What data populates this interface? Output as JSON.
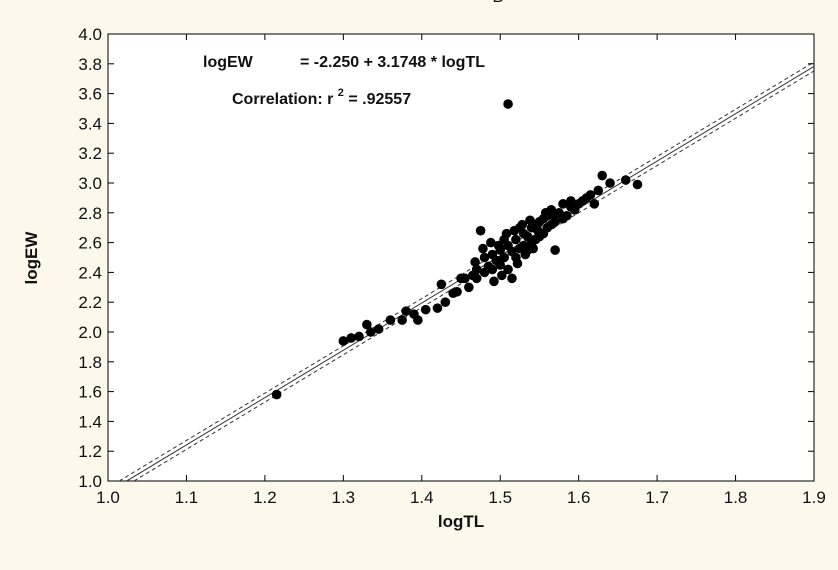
{
  "chart_data": {
    "type": "scatter",
    "top_label_partial": "B",
    "xlabel": "logTL",
    "ylabel": "logEW",
    "xlim": [
      1.0,
      1.9
    ],
    "ylim": [
      1.0,
      4.0
    ],
    "xticks": [
      1.0,
      1.1,
      1.2,
      1.3,
      1.4,
      1.5,
      1.6,
      1.7,
      1.8,
      1.9
    ],
    "xtick_labels": [
      "1.0",
      "1.1",
      "1.2",
      "1.3",
      "1.4",
      "1.5",
      "1.6",
      "1.7",
      "1.8",
      "1.9"
    ],
    "yticks": [
      1.0,
      1.2,
      1.4,
      1.6,
      1.8,
      2.0,
      2.2,
      2.4,
      2.6,
      2.8,
      3.0,
      3.2,
      3.4,
      3.6,
      3.8,
      4.0
    ],
    "ytick_labels": [
      "1.0",
      "1.2",
      "1.4",
      "1.6",
      "1.8",
      "2.0",
      "2.2",
      "2.4",
      "2.6",
      "2.8",
      "3.0",
      "3.2",
      "3.4",
      "3.6",
      "3.8",
      "4.0"
    ],
    "equation_label": "logEW",
    "equation_rhs": "= -2.250 + 3.1748 * logTL",
    "correlation_text": "Correlation: r",
    "correlation_exponent": "2",
    "correlation_value": " = .92557",
    "regression": {
      "intercept": -2.25,
      "slope": 3.1748
    },
    "confidence_band_offset": 0.03,
    "grid": false,
    "points": [
      [
        1.215,
        1.58
      ],
      [
        1.3,
        1.94
      ],
      [
        1.31,
        1.96
      ],
      [
        1.32,
        1.97
      ],
      [
        1.33,
        2.05
      ],
      [
        1.335,
        2.0
      ],
      [
        1.345,
        2.02
      ],
      [
        1.36,
        2.08
      ],
      [
        1.375,
        2.08
      ],
      [
        1.38,
        2.14
      ],
      [
        1.39,
        2.12
      ],
      [
        1.395,
        2.08
      ],
      [
        1.405,
        2.15
      ],
      [
        1.42,
        2.16
      ],
      [
        1.425,
        2.32
      ],
      [
        1.43,
        2.2
      ],
      [
        1.44,
        2.26
      ],
      [
        1.445,
        2.27
      ],
      [
        1.45,
        2.36
      ],
      [
        1.455,
        2.36
      ],
      [
        1.46,
        2.3
      ],
      [
        1.465,
        2.38
      ],
      [
        1.47,
        2.42
      ],
      [
        1.47,
        2.36
      ],
      [
        1.475,
        2.68
      ],
      [
        1.48,
        2.4
      ],
      [
        1.48,
        2.5
      ],
      [
        1.485,
        2.44
      ],
      [
        1.49,
        2.42
      ],
      [
        1.49,
        2.52
      ],
      [
        1.495,
        2.48
      ],
      [
        1.5,
        2.45
      ],
      [
        1.5,
        2.55
      ],
      [
        1.505,
        2.5
      ],
      [
        1.505,
        2.62
      ],
      [
        1.51,
        2.42
      ],
      [
        1.51,
        2.58
      ],
      [
        1.515,
        2.36
      ],
      [
        1.515,
        2.54
      ],
      [
        1.52,
        2.5
      ],
      [
        1.52,
        2.62
      ],
      [
        1.525,
        2.56
      ],
      [
        1.525,
        2.7
      ],
      [
        1.53,
        2.58
      ],
      [
        1.53,
        2.66
      ],
      [
        1.535,
        2.55
      ],
      [
        1.535,
        2.64
      ],
      [
        1.54,
        2.6
      ],
      [
        1.54,
        2.7
      ],
      [
        1.545,
        2.62
      ],
      [
        1.545,
        2.72
      ],
      [
        1.55,
        2.64
      ],
      [
        1.55,
        2.74
      ],
      [
        1.555,
        2.66
      ],
      [
        1.555,
        2.76
      ],
      [
        1.56,
        2.7
      ],
      [
        1.56,
        2.78
      ],
      [
        1.565,
        2.72
      ],
      [
        1.565,
        2.82
      ],
      [
        1.57,
        2.55
      ],
      [
        1.57,
        2.74
      ],
      [
        1.575,
        2.8
      ],
      [
        1.58,
        2.76
      ],
      [
        1.58,
        2.86
      ],
      [
        1.585,
        2.78
      ],
      [
        1.59,
        2.84
      ],
      [
        1.59,
        2.88
      ],
      [
        1.595,
        2.82
      ],
      [
        1.6,
        2.86
      ],
      [
        1.605,
        2.88
      ],
      [
        1.61,
        2.9
      ],
      [
        1.615,
        2.92
      ],
      [
        1.62,
        2.86
      ],
      [
        1.625,
        2.95
      ],
      [
        1.63,
        3.05
      ],
      [
        1.64,
        3.0
      ],
      [
        1.66,
        3.02
      ],
      [
        1.675,
        2.99
      ],
      [
        1.51,
        3.53
      ],
      [
        1.468,
        2.47
      ],
      [
        1.478,
        2.56
      ],
      [
        1.488,
        2.6
      ],
      [
        1.498,
        2.58
      ],
      [
        1.508,
        2.66
      ],
      [
        1.518,
        2.68
      ],
      [
        1.528,
        2.72
      ],
      [
        1.538,
        2.75
      ],
      [
        1.548,
        2.68
      ],
      [
        1.558,
        2.8
      ],
      [
        1.568,
        2.78
      ],
      [
        1.502,
        2.38
      ],
      [
        1.492,
        2.34
      ],
      [
        1.522,
        2.46
      ],
      [
        1.532,
        2.52
      ],
      [
        1.542,
        2.56
      ]
    ]
  }
}
